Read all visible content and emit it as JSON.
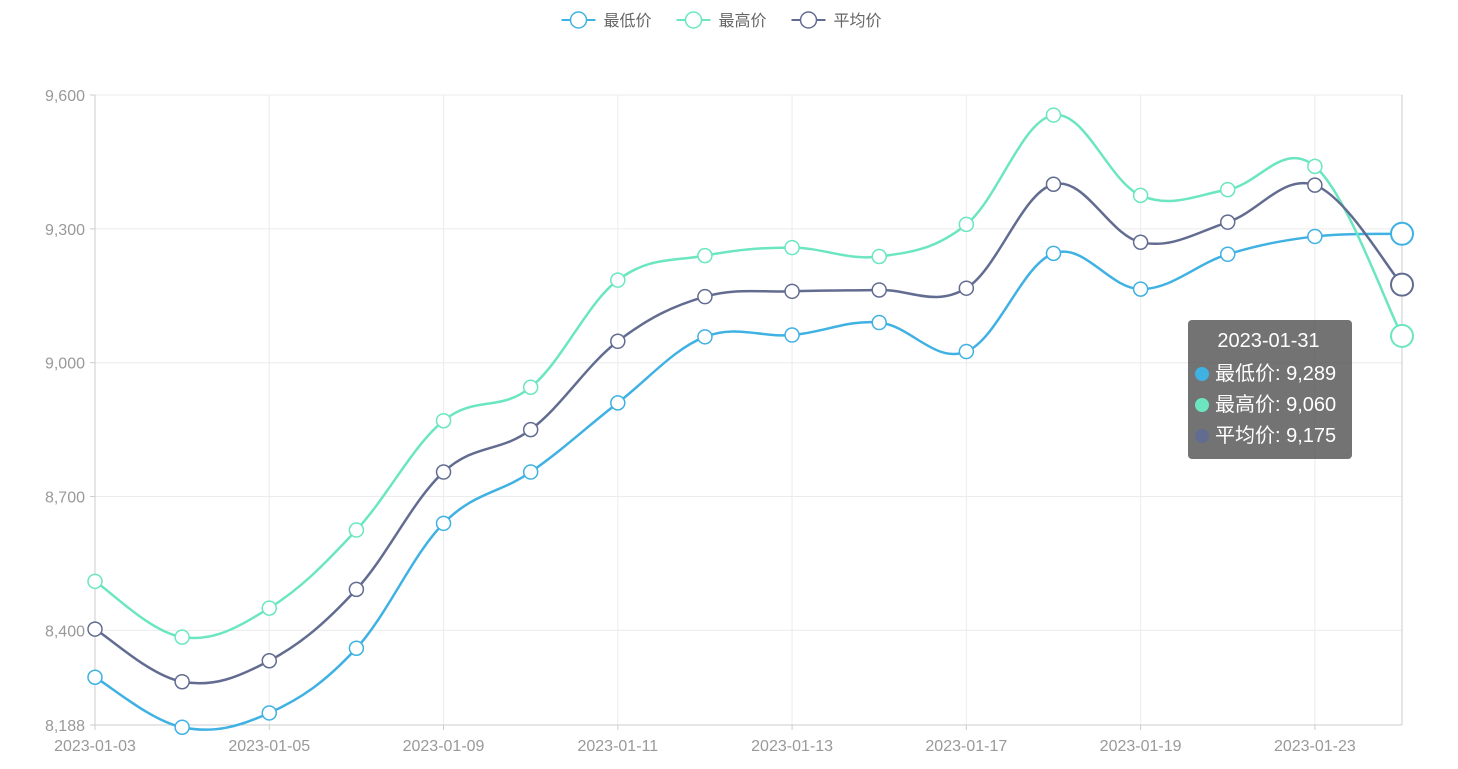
{
  "chart_data": {
    "type": "line",
    "smooth": true,
    "x": [
      "2023-01-03",
      "2023-01-04",
      "2023-01-05",
      "2023-01-07",
      "2023-01-09",
      "2023-01-10",
      "2023-01-11",
      "2023-01-12",
      "2023-01-13",
      "2023-01-14",
      "2023-01-17",
      "2023-01-18",
      "2023-01-19",
      "2023-01-20",
      "2023-01-23",
      "2023-01-31"
    ],
    "xticks": [
      "2023-01-03",
      "2023-01-05",
      "2023-01-09",
      "2023-01-11",
      "2023-01-13",
      "2023-01-17",
      "2023-01-19",
      "2023-01-23"
    ],
    "yticks": [
      8188,
      8400,
      8700,
      9000,
      9300,
      9600
    ],
    "ylim": [
      8188,
      9600
    ],
    "grid": true,
    "legend_position": "top-center",
    "series": [
      {
        "name": "最低价",
        "color": "#3fb1e3",
        "values": [
          8295,
          8183,
          8215,
          8360,
          8640,
          8755,
          8910,
          9058,
          9062,
          9090,
          9025,
          9245,
          9165,
          9243,
          9283,
          9289
        ]
      },
      {
        "name": "最高价",
        "color": "#6be6c1",
        "values": [
          8510,
          8385,
          8450,
          8625,
          8870,
          8945,
          9185,
          9240,
          9258,
          9238,
          9310,
          9555,
          9375,
          9388,
          9440,
          9060
        ]
      },
      {
        "name": "平均价",
        "color": "#626c91",
        "values": [
          8403,
          8285,
          8332,
          8492,
          8755,
          8850,
          9048,
          9148,
          9160,
          9163,
          9167,
          9400,
          9270,
          9315,
          9398,
          9175
        ]
      }
    ]
  },
  "tooltip": {
    "title": "2023-01-31",
    "rows": [
      {
        "label": "最低价: 9,289",
        "color": "#3fb1e3"
      },
      {
        "label": "最高价: 9,060",
        "color": "#6be6c1"
      },
      {
        "label": "平均价: 9,175",
        "color": "#626c91"
      }
    ]
  }
}
